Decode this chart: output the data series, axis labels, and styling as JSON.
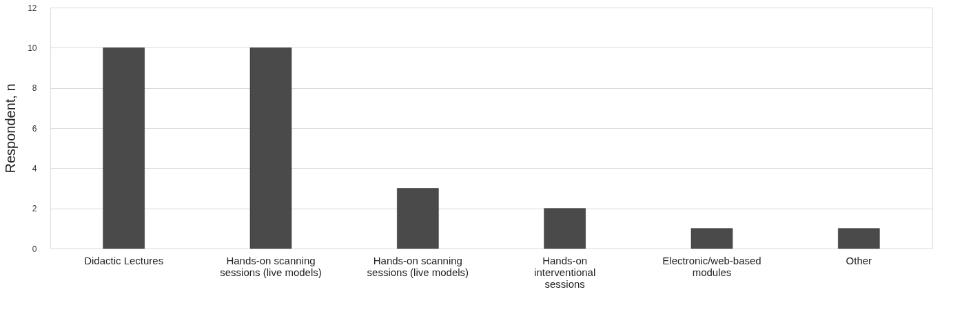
{
  "chart_data": {
    "type": "bar",
    "ylabel": "Respondent, n",
    "categories": [
      "Didactic Lectures",
      "Hands-on scanning sessions (live models)",
      "Hands-on scanning sessions (live models)",
      "Hands-on interventional sessions",
      "Electronic/web-based modules",
      "Other"
    ],
    "values": [
      10,
      10,
      3,
      2,
      1,
      1
    ],
    "color": "#4a4a4a",
    "ylim": [
      0,
      12
    ],
    "yticks": [
      0,
      2,
      4,
      6,
      8,
      10,
      12
    ],
    "grid": "y"
  }
}
